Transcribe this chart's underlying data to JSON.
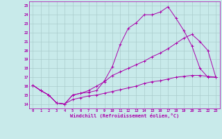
{
  "bg_color": "#c8eaea",
  "line_color": "#aa00aa",
  "grid_color": "#aacccc",
  "xlabel": "Windchill (Refroidissement éolien,°C)",
  "xlabel_color": "#aa00aa",
  "tick_color": "#aa00aa",
  "ylim": [
    13.5,
    25.5
  ],
  "xlim": [
    -0.5,
    23.5
  ],
  "yticks": [
    14,
    15,
    16,
    17,
    18,
    19,
    20,
    21,
    22,
    23,
    24,
    25
  ],
  "xticks": [
    0,
    1,
    2,
    3,
    4,
    5,
    6,
    7,
    8,
    9,
    10,
    11,
    12,
    13,
    14,
    15,
    16,
    17,
    18,
    19,
    20,
    21,
    22,
    23
  ],
  "curve1_x": [
    0,
    1,
    2,
    3,
    4,
    5,
    6,
    7,
    8,
    9,
    10,
    11,
    12,
    13,
    14,
    15,
    16,
    17,
    18,
    19,
    20,
    21,
    22,
    23
  ],
  "curve1_y": [
    16.1,
    15.5,
    15.0,
    14.1,
    14.0,
    15.0,
    15.2,
    15.3,
    15.5,
    16.6,
    18.2,
    20.7,
    22.5,
    23.1,
    24.0,
    24.0,
    24.3,
    24.9,
    23.6,
    22.2,
    20.5,
    18.0,
    17.0,
    17.0
  ],
  "curve2_x": [
    0,
    1,
    2,
    3,
    4,
    5,
    6,
    7,
    8,
    9,
    10,
    11,
    12,
    13,
    14,
    15,
    16,
    17,
    18,
    19,
    20,
    21,
    22,
    23
  ],
  "curve2_y": [
    16.1,
    15.5,
    15.0,
    14.1,
    14.0,
    15.0,
    15.2,
    15.5,
    16.0,
    16.5,
    17.2,
    17.6,
    18.0,
    18.4,
    18.8,
    19.3,
    19.7,
    20.2,
    20.8,
    21.4,
    21.8,
    21.0,
    20.0,
    17.0
  ],
  "curve3_x": [
    0,
    1,
    2,
    3,
    4,
    5,
    6,
    7,
    8,
    9,
    10,
    11,
    12,
    13,
    14,
    15,
    16,
    17,
    18,
    19,
    20,
    21,
    22,
    23
  ],
  "curve3_y": [
    16.1,
    15.5,
    15.0,
    14.1,
    14.0,
    14.5,
    14.7,
    14.9,
    15.0,
    15.2,
    15.4,
    15.6,
    15.8,
    16.0,
    16.3,
    16.5,
    16.6,
    16.8,
    17.0,
    17.1,
    17.2,
    17.2,
    17.1,
    17.0
  ]
}
